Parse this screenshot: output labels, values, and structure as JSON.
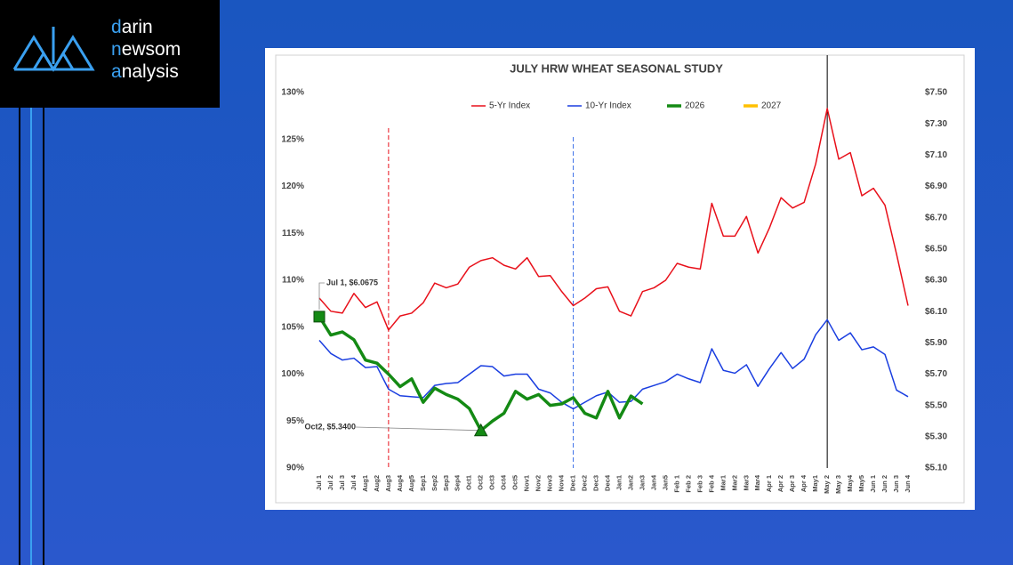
{
  "logo": {
    "lines": [
      "darin",
      "newsom",
      "analysis"
    ]
  },
  "chart_data": {
    "type": "line",
    "title": "JULY HRW WHEAT SEASONAL STUDY",
    "categories": [
      "Jul 1",
      "Jul 2",
      "Jul 3",
      "Jul 4",
      "Aug1",
      "Aug2",
      "Aug3",
      "Aug4",
      "Aug5",
      "Sep1",
      "Sep2",
      "Sep3",
      "Sep4",
      "Oct1",
      "Oct2",
      "Oct3",
      "Oct4",
      "Oct5",
      "Nov1",
      "Nov2",
      "Nov3",
      "Nov4",
      "Dec1",
      "Dec2",
      "Dec3",
      "Dec4",
      "Jan1",
      "Jan2",
      "Jan3",
      "Jan4",
      "Jan5",
      "Feb 1",
      "Feb 2",
      "Feb 3",
      "Feb 4",
      "Mar1",
      "Mar2",
      "Mar3",
      "Mar4",
      "Apr 1",
      "Apr 2",
      "Apr 3",
      "Apr 4",
      "May1",
      "May 2",
      "May 3",
      "May4",
      "May5",
      "Jun 1",
      "Jun 2",
      "Jun 3",
      "Jun 4"
    ],
    "series": [
      {
        "name": "5-Yr Index",
        "color": "#e8101a",
        "width": 1.5,
        "values": [
          108.1,
          106.7,
          106.5,
          108.6,
          107.1,
          107.7,
          104.7,
          106.2,
          106.5,
          107.6,
          109.7,
          109.2,
          109.6,
          111.4,
          112.1,
          112.4,
          111.6,
          111.2,
          112.4,
          110.4,
          110.5,
          108.8,
          107.3,
          108.1,
          109.1,
          109.3,
          106.7,
          106.2,
          108.8,
          109.2,
          110.0,
          111.8,
          111.4,
          111.2,
          118.2,
          114.7,
          114.7,
          116.8,
          112.9,
          115.6,
          118.8,
          117.7,
          118.3,
          122.4,
          128.3,
          122.9,
          123.6,
          119.0,
          119.8,
          118.0,
          112.8,
          107.3
        ]
      },
      {
        "name": "10-Yr Index",
        "color": "#1a3ee0",
        "width": 1.5,
        "values": [
          103.6,
          102.2,
          101.5,
          101.7,
          100.7,
          100.8,
          98.4,
          97.7,
          97.6,
          97.5,
          98.8,
          99.0,
          99.1,
          100.0,
          100.9,
          100.8,
          99.8,
          100.0,
          100.0,
          98.4,
          98.0,
          97.0,
          96.3,
          97.0,
          97.7,
          98.1,
          97.0,
          97.1,
          98.4,
          98.8,
          99.2,
          100.0,
          99.5,
          99.1,
          102.7,
          100.4,
          100.1,
          101.0,
          98.7,
          100.6,
          102.3,
          100.6,
          101.6,
          104.2,
          105.8,
          103.6,
          104.4,
          102.6,
          102.9,
          102.1,
          98.3,
          97.6
        ]
      },
      {
        "name": "2026",
        "color": "#148a14",
        "width": 3.5,
        "axis": "y2",
        "values": [
          6.0675,
          5.95,
          5.97,
          5.92,
          5.79,
          5.77,
          5.7,
          5.62,
          5.67,
          5.52,
          5.61,
          5.57,
          5.54,
          5.48,
          5.34,
          5.4,
          5.45,
          5.59,
          5.54,
          5.57,
          5.5,
          5.51,
          5.55,
          5.45,
          5.42,
          5.59,
          5.42,
          5.56,
          5.51,
          null,
          null,
          null,
          null,
          null,
          null,
          null,
          null,
          null,
          null,
          null,
          null,
          null,
          null,
          null,
          null,
          null,
          null,
          null,
          null,
          null,
          null,
          null
        ]
      },
      {
        "name": "2027",
        "color": "#ffc000",
        "width": 3.5,
        "axis": "y2",
        "values": [
          null,
          null,
          null,
          null,
          null,
          null,
          null,
          null,
          null,
          null,
          null,
          null,
          null,
          null,
          null,
          null,
          null,
          null,
          null,
          null,
          null,
          null,
          null,
          null,
          null,
          null,
          null,
          null,
          null,
          null,
          null,
          null,
          null,
          null,
          null,
          null,
          null,
          null,
          null,
          null,
          null,
          null,
          null,
          null,
          null,
          null,
          null,
          null,
          null,
          null,
          null,
          null
        ]
      }
    ],
    "ylim": [
      90,
      130
    ],
    "yticks": [
      {
        "value": 90,
        "label": "90%"
      },
      {
        "value": 95,
        "label": "95%"
      },
      {
        "value": 100,
        "label": "100%"
      },
      {
        "value": 105,
        "label": "105%"
      },
      {
        "value": 110,
        "label": "110%"
      },
      {
        "value": 115,
        "label": "115%"
      },
      {
        "value": 120,
        "label": "120%"
      },
      {
        "value": 125,
        "label": "125%"
      },
      {
        "value": 130,
        "label": "130%"
      }
    ],
    "y2lim": [
      5.1,
      7.5
    ],
    "y2ticks": [
      {
        "value": 5.1,
        "label": "$5.10"
      },
      {
        "value": 5.3,
        "label": "$5.30"
      },
      {
        "value": 5.5,
        "label": "$5.50"
      },
      {
        "value": 5.7,
        "label": "$5.70"
      },
      {
        "value": 5.9,
        "label": "$5.90"
      },
      {
        "value": 6.1,
        "label": "$6.10"
      },
      {
        "value": 6.3,
        "label": "$6.30"
      },
      {
        "value": 6.5,
        "label": "$6.50"
      },
      {
        "value": 6.7,
        "label": "$6.70"
      },
      {
        "value": 6.9,
        "label": "$6.90"
      },
      {
        "value": 7.1,
        "label": "$7.10"
      },
      {
        "value": 7.3,
        "label": "$7.30"
      },
      {
        "value": 7.5,
        "label": "$7.50"
      }
    ],
    "legend": "top",
    "vlines": [
      {
        "category": "Aug3",
        "color": "#e8101a",
        "dashed": true
      },
      {
        "category": "Dec1",
        "color": "#3a6ee8",
        "dashed": true
      },
      {
        "category": "May 2",
        "color": "#000000",
        "dashed": false
      }
    ],
    "annotations": [
      {
        "text": "Jul 1, $6.0675",
        "category": "Jul 1",
        "series": 2,
        "marker": "square"
      },
      {
        "text": "Oct2, $5.3400",
        "category": "Oct2",
        "series": 2,
        "marker": "triangle"
      }
    ]
  }
}
